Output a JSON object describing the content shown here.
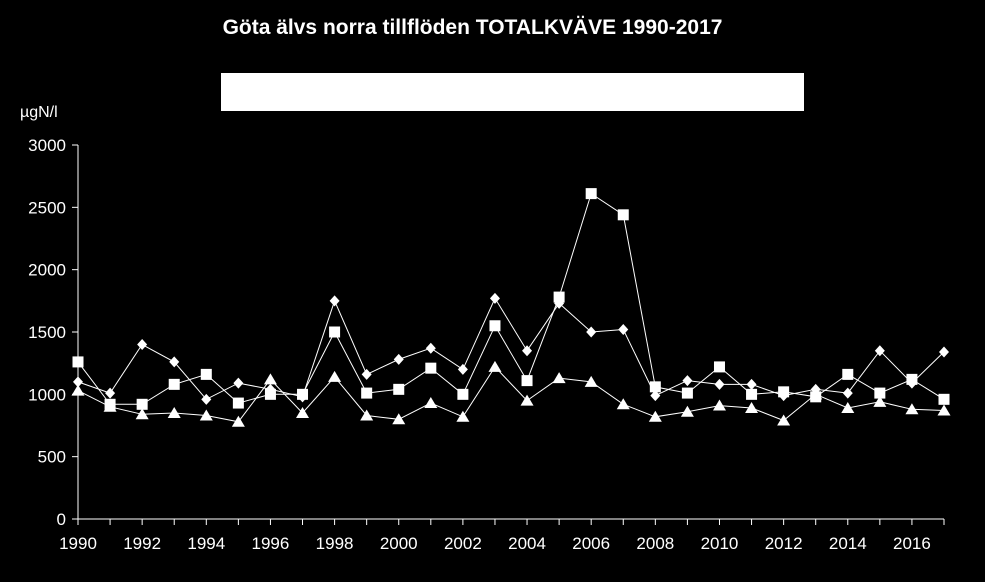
{
  "chart_data": {
    "type": "line",
    "title": "Göta älvs norra tillflöden TOTALKVÄVE 1990-2017",
    "ylabel": "µgN/l",
    "xlabel": "",
    "ylim": [
      0,
      3000
    ],
    "xlim": [
      1990,
      2017
    ],
    "yticks": [
      0,
      500,
      1000,
      1500,
      2000,
      2500,
      3000
    ],
    "xticks": [
      1990,
      1992,
      1994,
      1996,
      1998,
      2000,
      2002,
      2004,
      2006,
      2008,
      2010,
      2012,
      2014,
      2016
    ],
    "grid": false,
    "legend": "top",
    "x": [
      1990,
      1991,
      1992,
      1993,
      1994,
      1995,
      1996,
      1997,
      1998,
      1999,
      2000,
      2001,
      2002,
      2003,
      2004,
      2005,
      2006,
      2007,
      2008,
      2009,
      2010,
      2011,
      2012,
      2013,
      2014,
      2015,
      2016,
      2017
    ],
    "series": [
      {
        "marker": "diamond",
        "values": [
          1100,
          1010,
          1400,
          1260,
          960,
          1090,
          1040,
          980,
          1750,
          1160,
          1280,
          1370,
          1200,
          1770,
          1350,
          1730,
          1500,
          1520,
          990,
          1110,
          1080,
          1080,
          990,
          1040,
          1010,
          1350,
          1090,
          1340
        ]
      },
      {
        "marker": "square",
        "values": [
          1260,
          920,
          920,
          1080,
          1160,
          930,
          1000,
          1000,
          1500,
          1010,
          1040,
          1210,
          1000,
          1550,
          1110,
          1780,
          2610,
          2440,
          1060,
          1010,
          1220,
          1000,
          1020,
          980,
          1160,
          1010,
          1120,
          960
        ]
      },
      {
        "marker": "triangle",
        "values": [
          1030,
          900,
          840,
          850,
          830,
          780,
          1120,
          850,
          1140,
          830,
          800,
          930,
          820,
          1220,
          950,
          1130,
          1100,
          920,
          820,
          860,
          910,
          890,
          790,
          1000,
          890,
          940,
          880,
          870
        ]
      }
    ],
    "colors": {
      "background": "#000000",
      "lines": "#ffffff",
      "markers": "#ffffff"
    }
  }
}
